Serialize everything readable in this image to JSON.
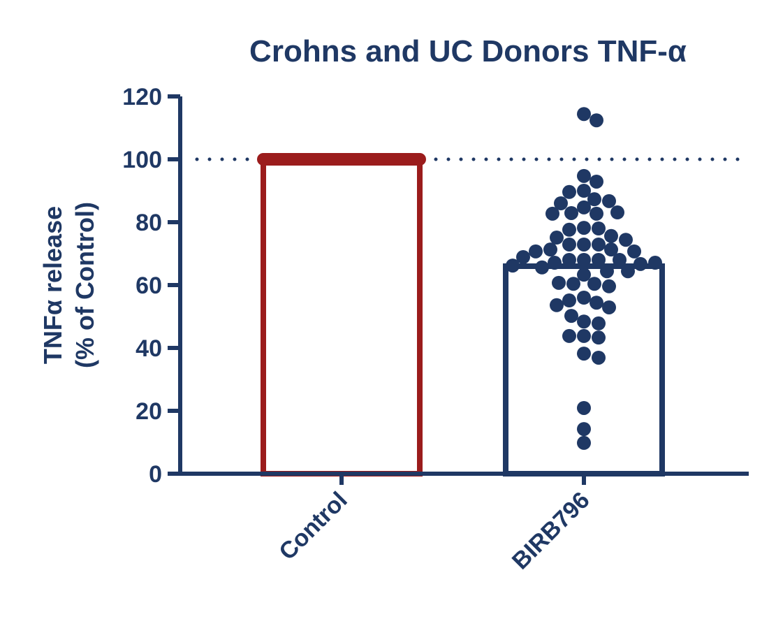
{
  "chart_data": {
    "type": "bar_scatter",
    "title": "Crohns and  UC  Donors TNF-α",
    "y_label": [
      "TNFα release",
      "(% of Control)"
    ],
    "categories": [
      "Control",
      "BIRB796"
    ],
    "values": [
      100,
      66
    ],
    "colors": [
      "#9b1c1c",
      "#1f3864"
    ],
    "point_color": "#1f3864",
    "points": [
      [],
      [
        114.4,
        112.4,
        94.7,
        92.9,
        90,
        89.6,
        87.3,
        86.7,
        84.7,
        86,
        82.7,
        82.9,
        83.1,
        82.7,
        78.2,
        78,
        77.6,
        75.6,
        75.1,
        72.9,
        72.9,
        72.9,
        74.4,
        71.3,
        71.3,
        70.7,
        70.7,
        68,
        68,
        68,
        68,
        68.9,
        67.1,
        66.7,
        67.1,
        65.6,
        66.2,
        64.4,
        63.3,
        64.4,
        60.4,
        60.4,
        60.7,
        59.6,
        56,
        54.4,
        55.1,
        52.9,
        53.6,
        48.4,
        50.2,
        47.8,
        43.8,
        43.8,
        43.3,
        38.2,
        36.9,
        20.9,
        14.2,
        9.8
      ]
    ],
    "reference_line": 100,
    "ylim": [
      0,
      120
    ],
    "yticks": [
      0,
      20,
      40,
      60,
      80,
      100,
      120
    ]
  }
}
